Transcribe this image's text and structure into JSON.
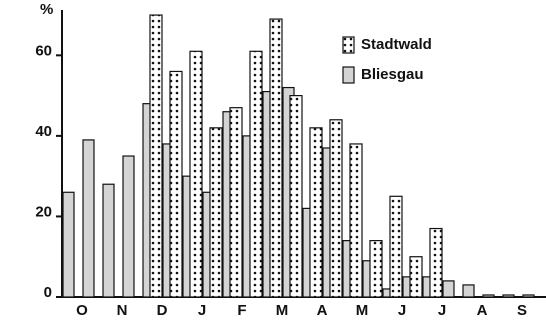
{
  "chart_data": {
    "type": "bar",
    "y_label": "%",
    "categories": [
      "O",
      null,
      "N",
      null,
      "D",
      null,
      "J",
      null,
      "F",
      null,
      "M",
      null,
      "A",
      null,
      "M",
      null,
      "J",
      null,
      "J",
      null,
      "A",
      null,
      "S",
      null
    ],
    "series": [
      {
        "name": "Bliesgau",
        "color": "#d4d4d4",
        "values": [
          26,
          39,
          28,
          35,
          48,
          38,
          30,
          26,
          46,
          40,
          51,
          52,
          22,
          37,
          14,
          9,
          2,
          5,
          5,
          4,
          3,
          0.5,
          0.5,
          0.5
        ]
      },
      {
        "name": "Stadtwald",
        "color": "#ffffff",
        "pattern": "dots",
        "values": [
          null,
          null,
          null,
          null,
          70,
          56,
          61,
          42,
          47,
          61,
          69,
          50,
          42,
          44,
          38,
          14,
          25,
          10,
          17,
          null,
          null,
          null,
          null,
          null
        ]
      }
    ],
    "ylim": [
      0,
      72
    ],
    "yticks": [
      0,
      20,
      40,
      60
    ],
    "legend": "top-right"
  }
}
